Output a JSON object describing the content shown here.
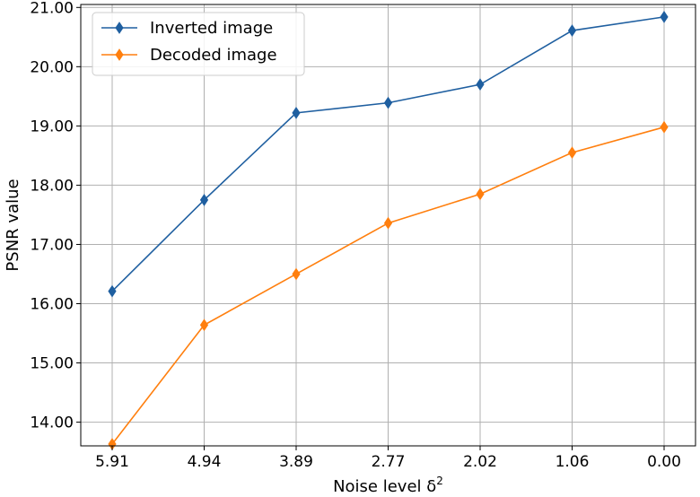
{
  "chart_data": {
    "type": "line",
    "categories": [
      "5.91",
      "4.94",
      "3.89",
      "2.77",
      "2.02",
      "1.06",
      "0.00"
    ],
    "series": [
      {
        "name": "Inverted image",
        "color": "#1f5fa0",
        "values": [
          16.21,
          17.75,
          19.22,
          19.39,
          19.7,
          20.61,
          20.84
        ]
      },
      {
        "name": "Decoded image",
        "color": "#ff7f0e",
        "values": [
          13.63,
          15.64,
          16.5,
          17.36,
          17.85,
          18.55,
          18.98
        ]
      }
    ],
    "xlabel": "Noise level δ",
    "xlabel_superscript": "2",
    "ylabel": "PSNR value",
    "ylim": [
      13.6,
      21.05
    ],
    "yticks": [
      "14.00",
      "15.00",
      "16.00",
      "17.00",
      "18.00",
      "19.00",
      "20.00",
      "21.00"
    ],
    "grid": true,
    "legend": "top-left",
    "marker": "thin-diamond"
  }
}
